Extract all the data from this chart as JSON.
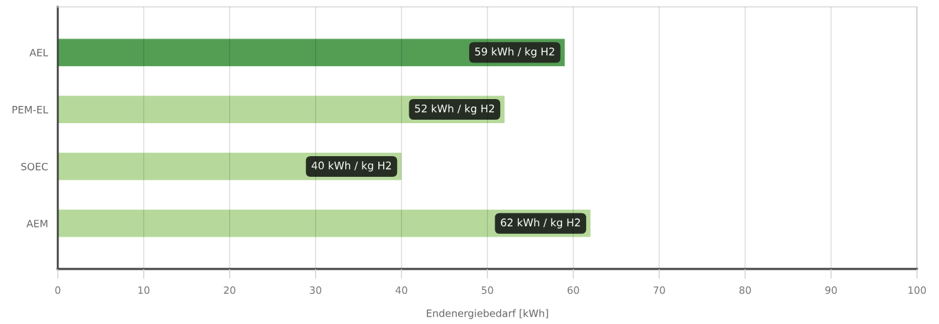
{
  "chart_data": {
    "type": "bar",
    "orientation": "horizontal",
    "categories": [
      "AEL",
      "PEM-EL",
      "SOEC",
      "AEM"
    ],
    "values": [
      59,
      52,
      40,
      62
    ],
    "colors": [
      "#549e54",
      "#b6d99b",
      "#b6d99b",
      "#b6d99b"
    ],
    "value_labels": [
      "59 kWh / kg H2",
      "52 kWh / kg H2",
      "40 kWh / kg H2",
      "62 kWh / kg H2"
    ],
    "xlabel": "Endenergiebedarf [kWh]",
    "xlim": [
      0,
      100
    ],
    "xticks": [
      0,
      10,
      20,
      30,
      40,
      50,
      60,
      70,
      80,
      90,
      100
    ],
    "grid": "x"
  }
}
